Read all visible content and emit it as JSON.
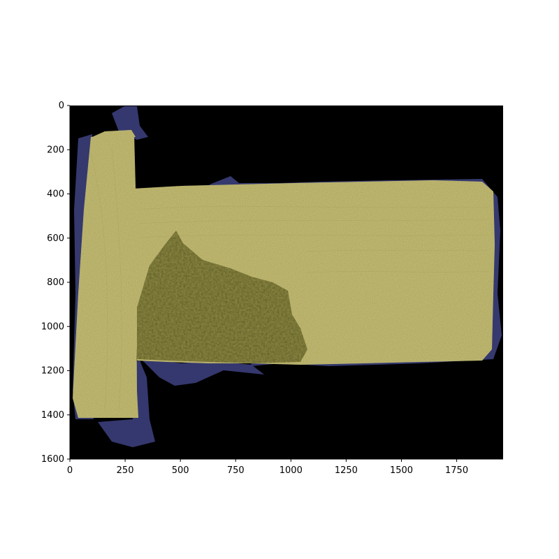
{
  "image": {
    "description_colors": {
      "background": "#000000",
      "specimen": "#c9c27a",
      "specimen_dark_zone": "#8e8a45",
      "edge_overlay": "#3b3f7a"
    },
    "extent": {
      "x": [
        0,
        1960
      ],
      "y": [
        0,
        1600
      ]
    }
  },
  "axes": {
    "x_ticks": [
      "0",
      "250",
      "500",
      "750",
      "1000",
      "1250",
      "1500",
      "1750"
    ],
    "x_tick_values": [
      0,
      250,
      500,
      750,
      1000,
      1250,
      1500,
      1750
    ],
    "y_ticks": [
      "0",
      "200",
      "400",
      "600",
      "800",
      "1000",
      "1200",
      "1400",
      "1600"
    ],
    "y_tick_values": [
      0,
      200,
      400,
      600,
      800,
      1000,
      1200,
      1400,
      1600
    ]
  }
}
